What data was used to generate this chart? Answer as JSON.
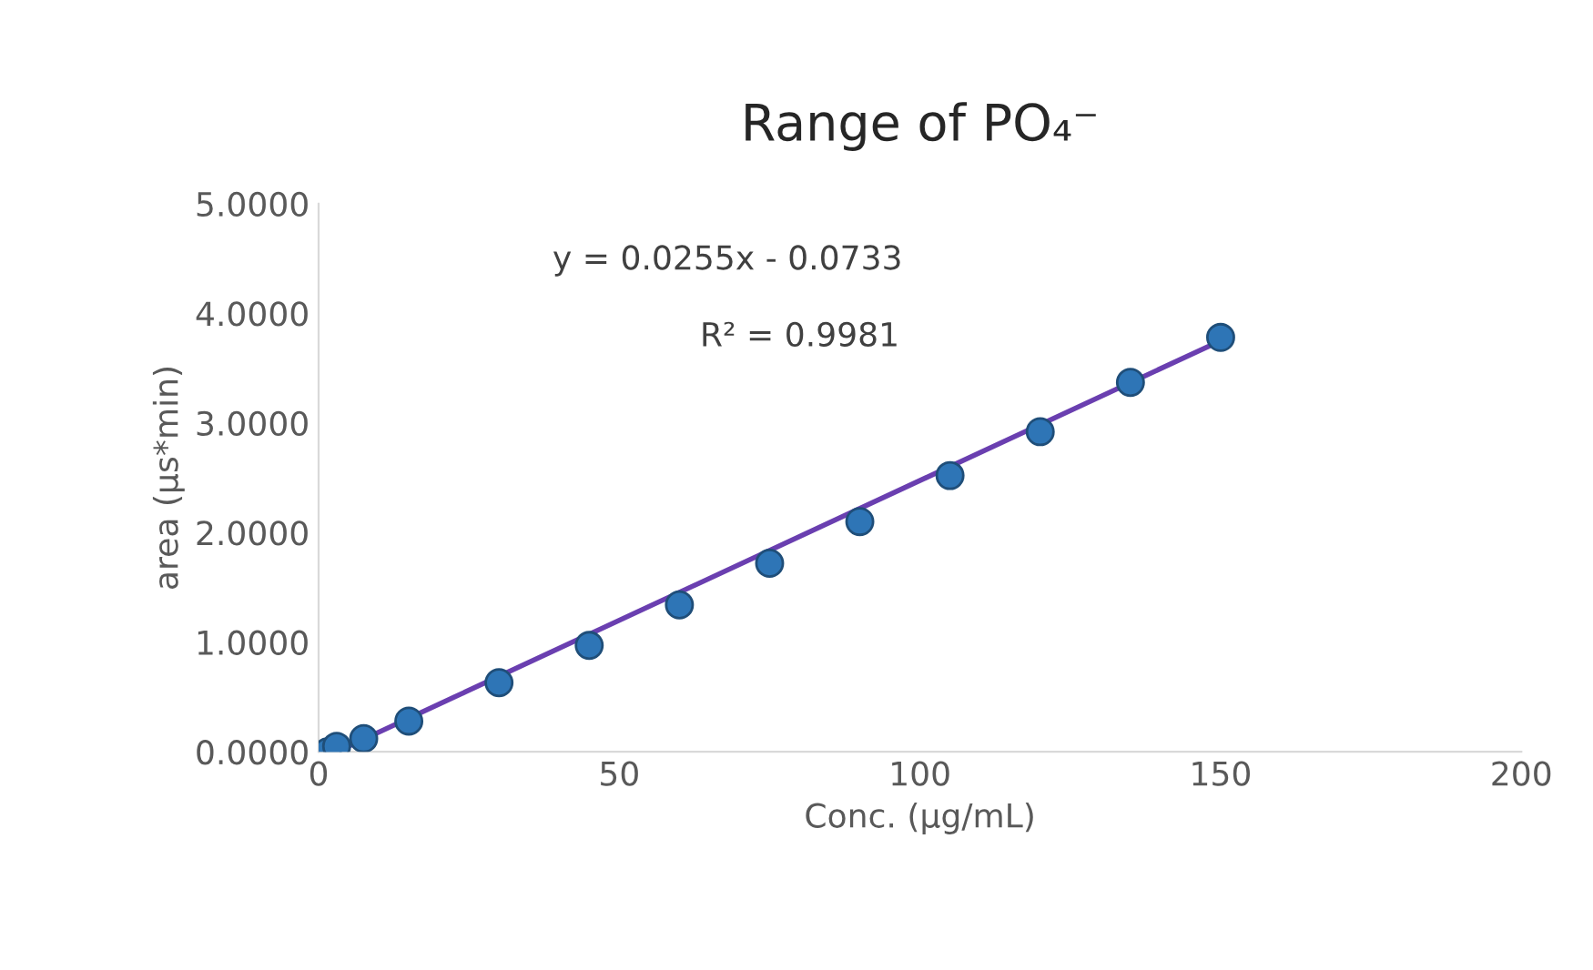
{
  "chart_data": {
    "type": "scatter",
    "title": "Range of PO₄⁻",
    "xlabel": "Conc. (μg/mL)",
    "ylabel": "area (μs*min)",
    "annotations": [
      "y = 0.0255x - 0.0733",
      "R² = 0.9981"
    ],
    "series": [
      {
        "color": "#2e75b6",
        "x": [
          1.5,
          3,
          7.5,
          15,
          30,
          45,
          60,
          75,
          90,
          105,
          120,
          135,
          150
        ],
        "values": [
          0.0,
          0.05,
          0.12,
          0.28,
          0.63,
          0.97,
          1.34,
          1.72,
          2.1,
          2.52,
          2.92,
          3.37,
          3.78
        ],
        "marker": "circle"
      },
      {
        "type": "line",
        "color": "#6a3fb0",
        "x": [
          3,
          150
        ],
        "values": [
          0.0,
          3.75
        ],
        "marker": "none"
      }
    ],
    "xlim": [
      0,
      200
    ],
    "xticks": [
      0,
      50,
      100,
      150,
      200
    ],
    "ylim": [
      0,
      5
    ],
    "yticks": [
      {
        "value": 0,
        "label": "0.0000"
      },
      {
        "value": 1,
        "label": "1.0000"
      },
      {
        "value": 2,
        "label": "2.0000"
      },
      {
        "value": 3,
        "label": "3.0000"
      },
      {
        "value": 4,
        "label": "4.0000"
      },
      {
        "value": 5,
        "label": "5.0000"
      }
    ],
    "grid": false,
    "legend": false
  }
}
